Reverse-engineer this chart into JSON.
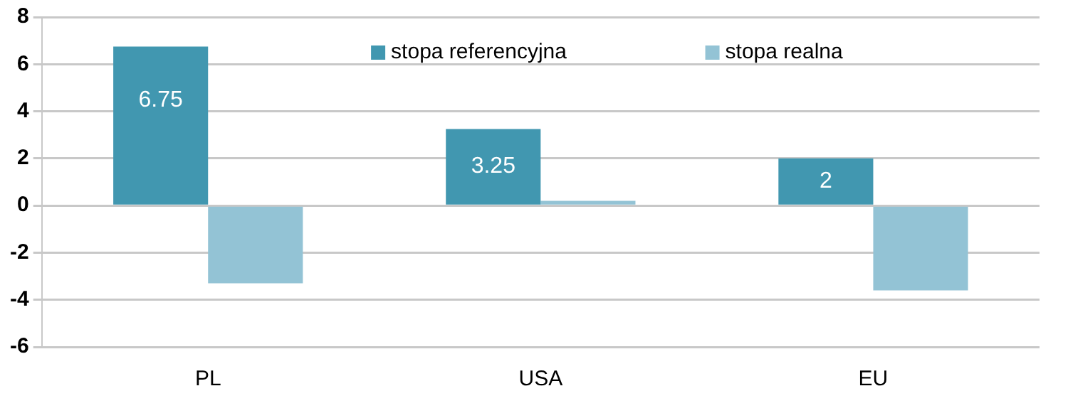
{
  "chart_data": {
    "type": "bar",
    "categories": [
      "PL",
      "USA",
      "EU"
    ],
    "series": [
      {
        "name": "stopa referencyjna",
        "color": "#4197b0",
        "values": [
          6.75,
          3.25,
          2
        ],
        "value_labels": [
          "6.75",
          "3.25",
          "2"
        ]
      },
      {
        "name": "stopa realna",
        "color": "#93c3d5",
        "values": [
          -3.3,
          0.2,
          -3.6
        ]
      }
    ],
    "ylim": [
      -6,
      8
    ],
    "yticks": [
      -6,
      -4,
      -2,
      0,
      2,
      4,
      6,
      8
    ],
    "grid": "y",
    "legend": "top"
  }
}
